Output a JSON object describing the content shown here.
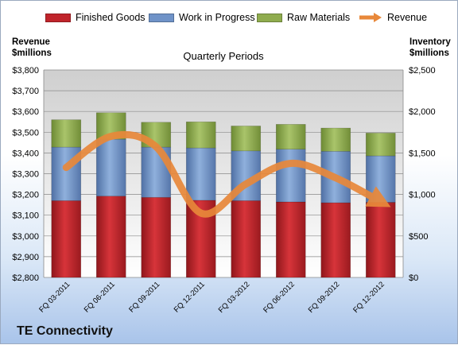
{
  "chart_data": {
    "type": "bar",
    "stacked": true,
    "title": "Quarterly Periods",
    "company": "TE Connectivity",
    "categories": [
      "FQ 03-2011",
      "FQ 06-2011",
      "FQ 09-2011",
      "FQ 12-2011",
      "FQ 03-2012",
      "FQ 06-2012",
      "FQ 09-2012",
      "FQ 12-2012"
    ],
    "left_axis": {
      "title_line1": "Revenue",
      "title_line2": "$millions",
      "ylim": [
        2800,
        3800
      ],
      "ticks": [
        "$2,800",
        "$2,900",
        "$3,000",
        "$3,100",
        "$3,200",
        "$3,300",
        "$3,400",
        "$3,500",
        "$3,600",
        "$3,700",
        "$3,800"
      ]
    },
    "right_axis": {
      "title_line1": "Inventory",
      "title_line2": "$millions",
      "ylim": [
        0,
        2500
      ],
      "ticks": [
        "$0",
        "$500",
        "$1,000",
        "$1,500",
        "$2,000",
        "$2,500"
      ]
    },
    "series": [
      {
        "name": "Finished Goods",
        "axis": "right",
        "color": "#c0242b",
        "values": [
          925,
          980,
          965,
          930,
          925,
          910,
          900,
          905
        ]
      },
      {
        "name": "Work in Progress",
        "axis": "right",
        "color": "#6f93c8",
        "values": [
          645,
          685,
          605,
          630,
          600,
          635,
          620,
          560
        ]
      },
      {
        "name": "Raw Materials",
        "axis": "right",
        "color": "#8fac4e",
        "values": [
          330,
          320,
          300,
          315,
          300,
          300,
          280,
          275
        ]
      },
      {
        "name": "Revenue",
        "axis": "left",
        "type": "line",
        "color": "#e8883a",
        "values": [
          3330,
          3480,
          3430,
          3110,
          3250,
          3350,
          3280,
          3165
        ]
      }
    ],
    "legend_position": "top",
    "grid": true
  }
}
